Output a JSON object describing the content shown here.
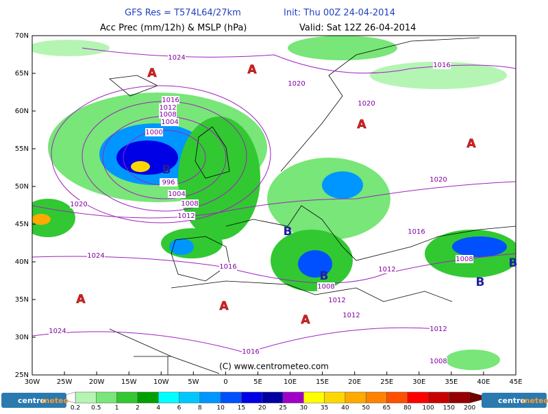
{
  "header": {
    "title_left": "GFS Res = T574L64/27km",
    "title_right": "Init: Thu 00Z 24-04-2014",
    "subtitle_left": "Acc Prec (mm/12h) & MSLP (hPa)",
    "subtitle_right": "Valid: Sat 12Z 26-04-2014"
  },
  "map": {
    "lat_labels": [
      "70N",
      "65N",
      "60N",
      "55N",
      "50N",
      "45N",
      "40N",
      "35N",
      "30N",
      "25N"
    ],
    "lon_labels": [
      "30W",
      "25W",
      "20W",
      "15W",
      "10W",
      "5W",
      "0",
      "5E",
      "10E",
      "15E",
      "20E",
      "25E",
      "30E",
      "35E",
      "40E",
      "45E"
    ],
    "isobar_labels": [
      "1024",
      "1016",
      "1020",
      "1020",
      "1016",
      "1012",
      "1008",
      "1004",
      "1000",
      "996",
      "1004",
      "1008",
      "1012",
      "1020",
      "1020",
      "1024",
      "1016",
      "1016",
      "1008",
      "1012",
      "1008",
      "1012",
      "1012",
      "1024",
      "1016",
      "1012",
      "1008"
    ],
    "highs": [
      "A",
      "A",
      "A",
      "A",
      "A",
      "A",
      "A"
    ],
    "lows": [
      "B",
      "B",
      "B",
      "B",
      "B"
    ],
    "copyright": "(C) www.centrometeo.com"
  },
  "legend": {
    "labels": [
      "0.2",
      "0.5",
      "1",
      "2",
      "4",
      "6",
      "8",
      "10",
      "15",
      "20",
      "25",
      "30",
      "35",
      "40",
      "50",
      "65",
      "80",
      "100",
      "150",
      "200"
    ],
    "colors": [
      "#ffffff",
      "#b4f5b4",
      "#78e678",
      "#32c832",
      "#00a000",
      "#00ffff",
      "#00c8ff",
      "#0096ff",
      "#0050ff",
      "#0000e6",
      "#0000a0",
      "#a000c8",
      "#ffff00",
      "#ffd700",
      "#ffaa00",
      "#ff8200",
      "#ff5000",
      "#ff0000",
      "#c80000",
      "#960000",
      "#6e0000"
    ]
  },
  "footer": {
    "logo_left_a": "centro",
    "logo_left_b": "meteo",
    "logo_right_a": "centro",
    "logo_right_b": "meteo"
  }
}
